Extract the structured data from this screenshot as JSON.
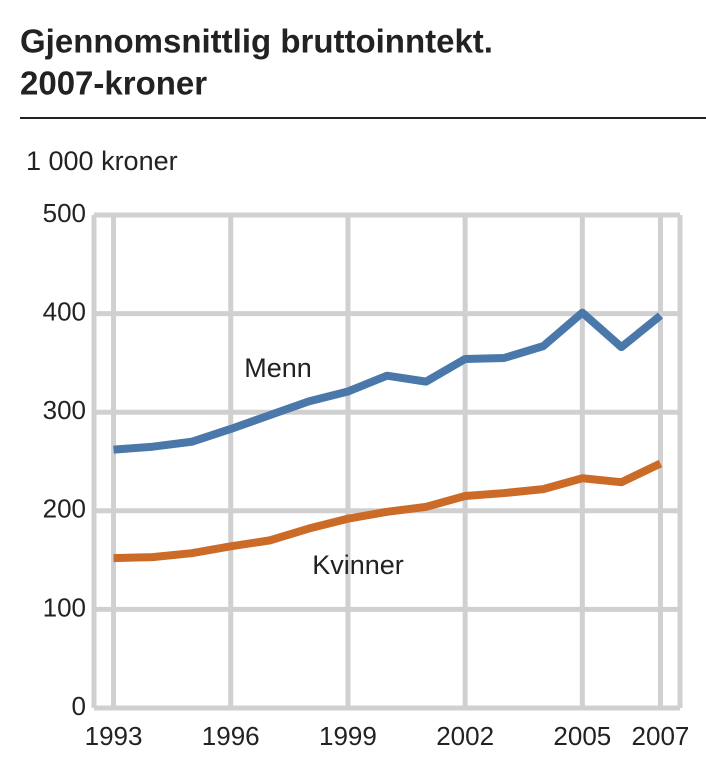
{
  "chart_data": {
    "type": "line",
    "title": "Gjennomsnittlig bruttoinntekt.",
    "subtitle": "2007-kroner",
    "y_label": "1 000 kroner",
    "x": [
      1993,
      1994,
      1995,
      1996,
      1997,
      1998,
      1999,
      2000,
      2001,
      2002,
      2003,
      2004,
      2005,
      2006,
      2007
    ],
    "series": [
      {
        "name": "Menn",
        "color": "#4a78aa",
        "values": [
          262,
          265,
          270,
          283,
          297,
          311,
          321,
          337,
          331,
          354,
          355,
          367,
          401,
          366,
          398
        ]
      },
      {
        "name": "Kvinner",
        "color": "#cc6a28",
        "values": [
          152,
          153,
          157,
          164,
          170,
          182,
          192,
          199,
          204,
          215,
          218,
          222,
          233,
          229,
          248
        ]
      }
    ],
    "xlim": [
      1992.5,
      2007.5
    ],
    "xticks": [
      1993,
      1996,
      1999,
      2002,
      2005,
      2007
    ],
    "ylim": [
      0,
      500
    ],
    "yticks": [
      0,
      100,
      200,
      300,
      400,
      500
    ],
    "grid": true
  }
}
